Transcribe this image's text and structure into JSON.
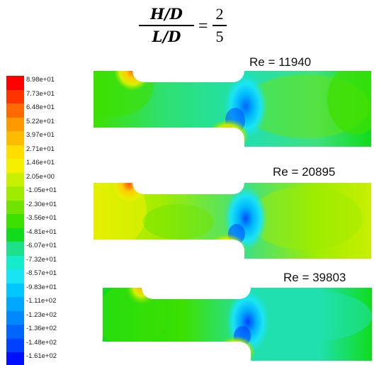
{
  "formula": {
    "left_num": "H/D",
    "left_den": "L/D",
    "equals": "=",
    "right_num": "2",
    "right_den": "5"
  },
  "legend": {
    "labels": [
      "8.98e+01",
      "7.73e+01",
      "6.48e+01",
      "5.22e+01",
      "3.97e+01",
      "2.71e+01",
      "1.46e+01",
      "2.05e+00",
      "-1.05e+01",
      "-2.30e+01",
      "-3.56e+01",
      "-4.81e+01",
      "-6.07e+01",
      "-7.32e+01",
      "-8.57e+01",
      "-9.83e+01",
      "-1.11e+02",
      "-1.23e+02",
      "-1.36e+02",
      "-1.48e+02",
      "-1.61e+02"
    ],
    "colors": [
      "#ff0000",
      "#ff3300",
      "#ff6a00",
      "#ff9900",
      "#ffbb00",
      "#ffdd00",
      "#f4f000",
      "#c8f000",
      "#9fec00",
      "#6fe400",
      "#3ee000",
      "#10dc1c",
      "#1ee08a",
      "#15eccc",
      "#19e4f4",
      "#00c8ff",
      "#00a8ff",
      "#0088ff",
      "#0064ff",
      "#0040ff",
      "#0010ff"
    ]
  },
  "panels": [
    {
      "re_label": "Re = 11940"
    },
    {
      "re_label": "Re = 20895"
    },
    {
      "re_label": "Re = 39803"
    }
  ]
}
